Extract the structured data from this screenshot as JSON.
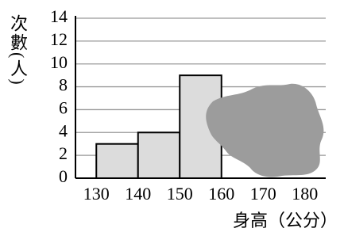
{
  "chart_data": {
    "type": "histogram",
    "ylabel": "次數(人)",
    "xlabel": "身高（公分）",
    "bins": [
      130,
      140,
      150,
      160,
      170,
      180
    ],
    "values": [
      3,
      4,
      9,
      null,
      null
    ],
    "color": "#dcdcdc",
    "xlim": [
      125,
      185
    ],
    "xticks": [
      130,
      140,
      150,
      160,
      170,
      180
    ],
    "ylim": [
      0,
      14
    ],
    "yticks": [
      0,
      2,
      4,
      6,
      8,
      10,
      12,
      14
    ],
    "grid": true
  }
}
